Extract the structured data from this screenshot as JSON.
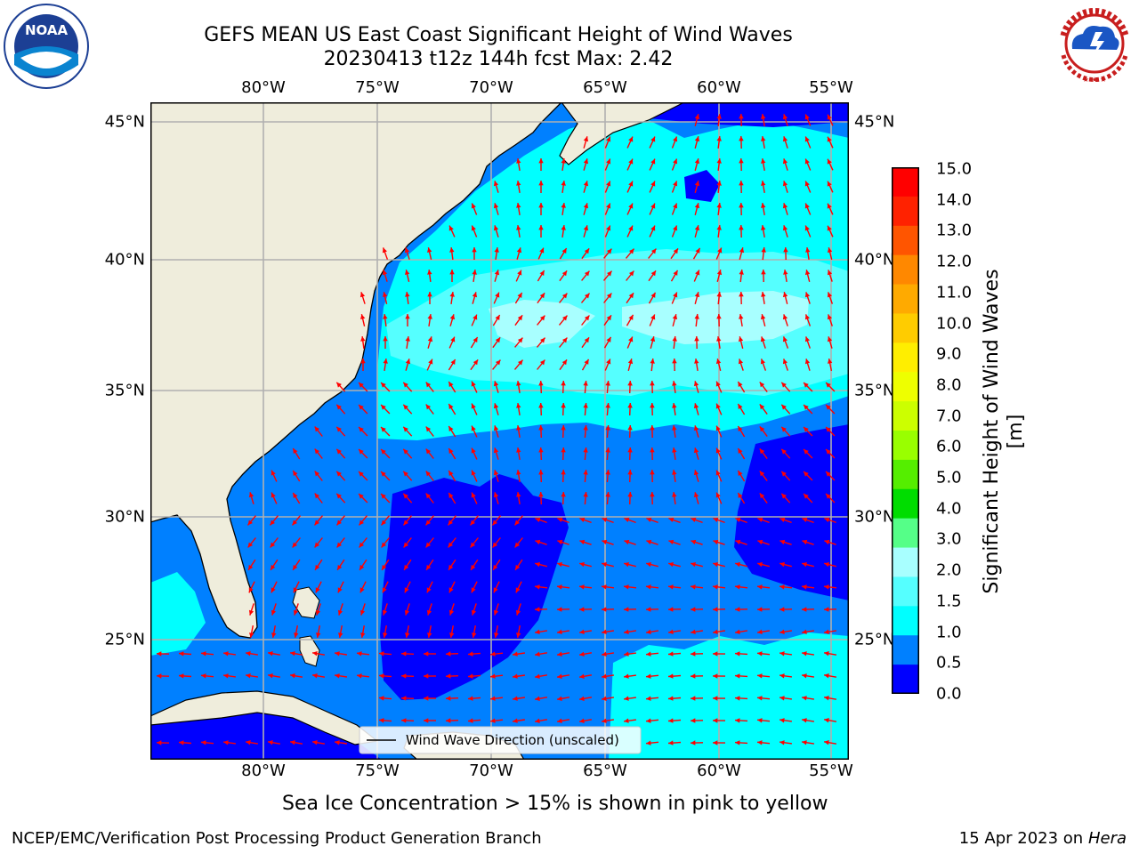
{
  "title": {
    "line1": "GEFS MEAN US East Coast Significant Height of Wind Waves",
    "line2": "20230413 t12z 144h fcst   Max: 2.42"
  },
  "map": {
    "lon_labels": [
      "80°W",
      "75°W",
      "70°W",
      "65°W",
      "60°W",
      "55°W"
    ],
    "lat_labels": [
      "45°N",
      "40°N",
      "35°N",
      "30°N",
      "25°N"
    ],
    "legend_label": "Wind Wave Direction (unscaled)",
    "colors": {
      "land": "#efeddc",
      "grid": "#b0b0b0",
      "arrow": "#ff0000"
    }
  },
  "colorbar": {
    "label": "Significant Height of Wind Waves [m]",
    "ticks": [
      "15.0",
      "14.0",
      "13.0",
      "12.0",
      "11.0",
      "10.0",
      "9.0",
      "8.0",
      "7.0",
      "6.0",
      "5.0",
      "4.0",
      "3.0",
      "2.0",
      "1.5",
      "1.0",
      "0.5",
      "0.0"
    ],
    "colors": [
      "#ff0000",
      "#ff2200",
      "#ff5500",
      "#ff8800",
      "#ffaa00",
      "#ffcc00",
      "#ffee00",
      "#eeff00",
      "#ccff00",
      "#99ff00",
      "#55ee00",
      "#00dd00",
      "#55ff88",
      "#a8ffff",
      "#55ffff",
      "#00ffff",
      "#0080ff",
      "#0000ff"
    ]
  },
  "note": "Sea Ice Concentration > 15% is shown in pink to yellow",
  "footer": {
    "left": "NCEP/EMC/Verification Post Processing Product Generation Branch",
    "date": "15 Apr 2023 on",
    "machine": "Hera"
  },
  "logos": {
    "noaa_text": "NOAA",
    "nws_text": "NATIONAL WEATHER SERVICE"
  }
}
